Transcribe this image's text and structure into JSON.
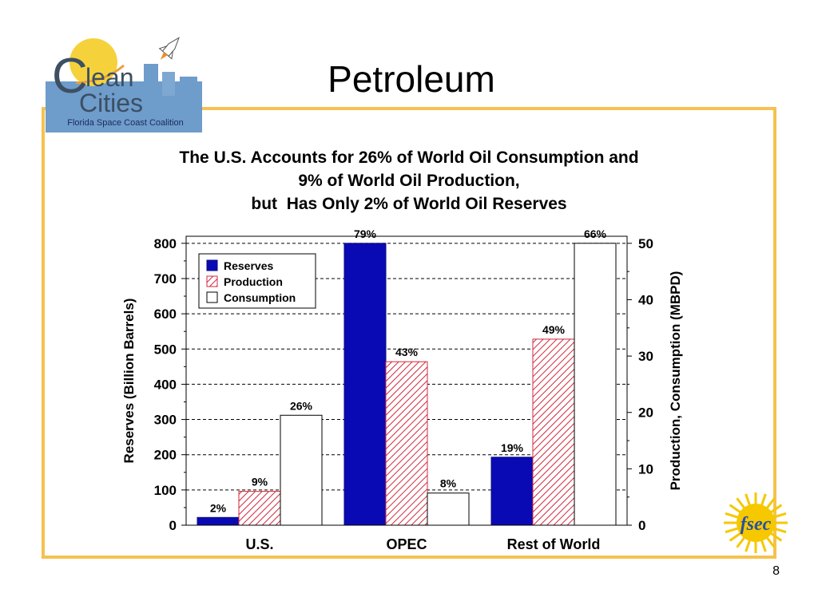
{
  "slide": {
    "title": "Petroleum",
    "page_number": "8"
  },
  "logo": {
    "line1": "lean",
    "line2": "Cities",
    "subtitle": "Florida Space Coast Coalition",
    "letter": "C"
  },
  "fsec_logo": {
    "text": "fsec"
  },
  "heading": {
    "line1": "The U.S. Accounts for 26% of World Oil Consumption and",
    "line2": "9% of World Oil Production,",
    "line3": "but  Has Only 2% of World Oil Reserves"
  },
  "colors": {
    "reserves": "#0A0AB4",
    "production": "#D2283C",
    "consumption": "#FFFFFF",
    "frame": "#F5C24F",
    "grid": "#000000"
  },
  "chart_data": {
    "type": "bar",
    "categories": [
      "U.S.",
      "OPEC",
      "Rest of World"
    ],
    "series": [
      {
        "name": "Reserves",
        "axis": "left",
        "values": [
          22,
          800,
          193
        ],
        "labels": [
          "2%",
          "79%",
          "19%"
        ]
      },
      {
        "name": "Production",
        "axis": "right",
        "values": [
          6,
          29,
          33
        ],
        "labels": [
          "9%",
          "43%",
          "49%"
        ]
      },
      {
        "name": "Consumption",
        "axis": "right",
        "values": [
          19.5,
          5.7,
          50
        ],
        "labels": [
          "26%",
          "8%",
          "66%"
        ]
      }
    ],
    "ylabel": "Reserves (Billion Barrels)",
    "y2label": "Production, Consumption (MBPD)",
    "ylim": [
      0,
      820
    ],
    "y2lim": [
      0,
      51.25
    ],
    "yticks": [
      0,
      100,
      200,
      300,
      400,
      500,
      600,
      700,
      800
    ],
    "y2ticks": [
      0,
      10,
      20,
      30,
      40,
      50
    ],
    "grid": true,
    "legend_position": "top-left"
  }
}
